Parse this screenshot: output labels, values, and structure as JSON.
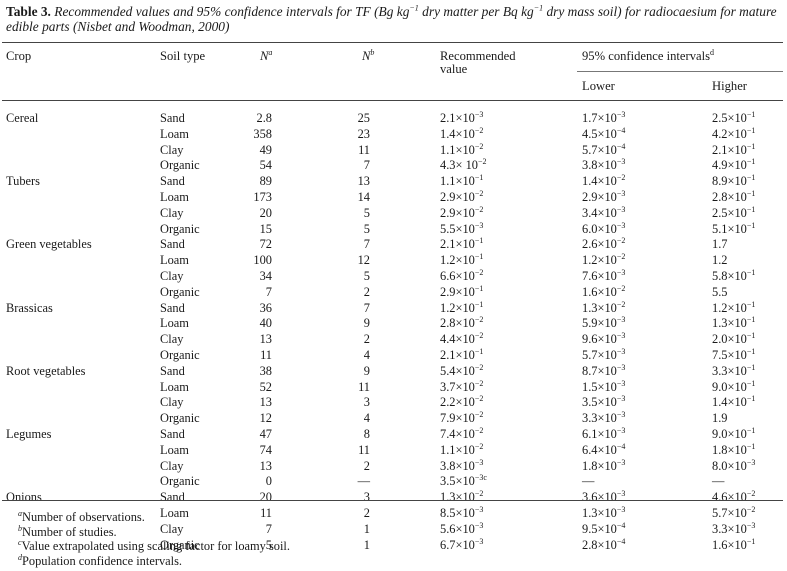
{
  "caption": {
    "label": "Table 3.",
    "text_part1": "Recommended values and 95% confidence intervals for TF (Bg kg",
    "exp1": "−1",
    "text_part2": " dry matter per Bq kg",
    "exp2": "−1",
    "text_part3": " dry mass soil) for radiocaesium for mature edible parts (Nisbet and Woodman, 2000)"
  },
  "headers": {
    "crop": "Crop",
    "soil": "Soil type",
    "n1": "N",
    "n1_sup": "a",
    "n2": "N",
    "n2_sup": "b",
    "rec_line1": "Recommended",
    "rec_line2": "value",
    "ci": "95% confidence intervals",
    "ci_sup": "d",
    "lower": "Lower",
    "higher": "Higher"
  },
  "rows": [
    {
      "crop": "Cereal",
      "soil": "Sand",
      "n1": "2.8",
      "n2": "25",
      "rec": "2.1×10",
      "rec_e": "−3",
      "low": "1.7×10",
      "low_e": "−3",
      "high": "2.5×10",
      "high_e": "−1"
    },
    {
      "crop": "",
      "soil": "Loam",
      "n1": "358",
      "n2": "23",
      "rec": "1.4×10",
      "rec_e": "−2",
      "low": "4.5×10",
      "low_e": "−4",
      "high": "4.2×10",
      "high_e": "−1"
    },
    {
      "crop": "",
      "soil": "Clay",
      "n1": "49",
      "n2": "11",
      "rec": "1.1×10",
      "rec_e": "−2",
      "low": "5.7×10",
      "low_e": "−4",
      "high": "2.1×10",
      "high_e": "−1"
    },
    {
      "crop": "",
      "soil": "Organic",
      "n1": "54",
      "n2": "7",
      "rec": "4.3× 10",
      "rec_e": "−2",
      "low": "3.8×10",
      "low_e": "−3",
      "high": "4.9×10",
      "high_e": "−1"
    },
    {
      "crop": "Tubers",
      "soil": "Sand",
      "n1": "89",
      "n2": "13",
      "rec": "1.1×10",
      "rec_e": "−1",
      "low": "1.4×10",
      "low_e": "−2",
      "high": "8.9×10",
      "high_e": "−1"
    },
    {
      "crop": "",
      "soil": "Loam",
      "n1": "173",
      "n2": "14",
      "rec": "2.9×10",
      "rec_e": "−2",
      "low": "2.9×10",
      "low_e": "−3",
      "high": "2.8×10",
      "high_e": "−1"
    },
    {
      "crop": "",
      "soil": "Clay",
      "n1": "20",
      "n2": "5",
      "rec": "2.9×10",
      "rec_e": "−2",
      "low": "3.4×10",
      "low_e": "−3",
      "high": "2.5×10",
      "high_e": "−1"
    },
    {
      "crop": "",
      "soil": "Organic",
      "n1": "15",
      "n2": "5",
      "rec": "5.5×10",
      "rec_e": "−3",
      "low": "6.0×10",
      "low_e": "−3",
      "high": "5.1×10",
      "high_e": "−1"
    },
    {
      "crop": "Green vegetables",
      "soil": "Sand",
      "n1": "72",
      "n2": "7",
      "rec": "2.1×10",
      "rec_e": "−1",
      "low": "2.6×10",
      "low_e": "−2",
      "high": "1.7",
      "high_e": ""
    },
    {
      "crop": "",
      "soil": "Loam",
      "n1": "100",
      "n2": "12",
      "rec": "1.2×10",
      "rec_e": "−1",
      "low": "1.2×10",
      "low_e": "−2",
      "high": "1.2",
      "high_e": ""
    },
    {
      "crop": "",
      "soil": "Clay",
      "n1": "34",
      "n2": "5",
      "rec": "6.6×10",
      "rec_e": "−2",
      "low": "7.6×10",
      "low_e": "−3",
      "high": "5.8×10",
      "high_e": "−1"
    },
    {
      "crop": "",
      "soil": "Organic",
      "n1": "7",
      "n2": "2",
      "rec": "2.9×10",
      "rec_e": "−1",
      "low": "1.6×10",
      "low_e": "−2",
      "high": "5.5",
      "high_e": ""
    },
    {
      "crop": "Brassicas",
      "soil": "Sand",
      "n1": "36",
      "n2": "7",
      "rec": "1.2×10",
      "rec_e": "−1",
      "low": "1.3×10",
      "low_e": "−2",
      "high": "1.2×10",
      "high_e": "−1"
    },
    {
      "crop": "",
      "soil": "Loam",
      "n1": "40",
      "n2": "9",
      "rec": "2.8×10",
      "rec_e": "−2",
      "low": "5.9×10",
      "low_e": "−3",
      "high": "1.3×10",
      "high_e": "−1"
    },
    {
      "crop": "",
      "soil": "Clay",
      "n1": "13",
      "n2": "2",
      "rec": "4.4×10",
      "rec_e": "−2",
      "low": "9.6×10",
      "low_e": "−3",
      "high": "2.0×10",
      "high_e": "−1"
    },
    {
      "crop": "",
      "soil": "Organic",
      "n1": "11",
      "n2": "4",
      "rec": "2.1×10",
      "rec_e": "−1",
      "low": "5.7×10",
      "low_e": "−3",
      "high": "7.5×10",
      "high_e": "−1"
    },
    {
      "crop": "Root vegetables",
      "soil": "Sand",
      "n1": "38",
      "n2": "9",
      "rec": "5.4×10",
      "rec_e": "−2",
      "low": "8.7×10",
      "low_e": "−3",
      "high": "3.3×10",
      "high_e": "−1"
    },
    {
      "crop": "",
      "soil": "Loam",
      "n1": "52",
      "n2": "11",
      "rec": "3.7×10",
      "rec_e": "−2",
      "low": "1.5×10",
      "low_e": "−3",
      "high": "9.0×10",
      "high_e": "−1"
    },
    {
      "crop": "",
      "soil": "Clay",
      "n1": "13",
      "n2": "3",
      "rec": "2.2×10",
      "rec_e": "−2",
      "low": "3.5×10",
      "low_e": "−3",
      "high": "1.4×10",
      "high_e": "−1"
    },
    {
      "crop": "",
      "soil": "Organic",
      "n1": "12",
      "n2": "4",
      "rec": "7.9×10",
      "rec_e": "−2",
      "low": "3.3×10",
      "low_e": "−3",
      "high": "1.9",
      "high_e": ""
    },
    {
      "crop": "Legumes",
      "soil": "Sand",
      "n1": "47",
      "n2": "8",
      "rec": "7.4×10",
      "rec_e": "−2",
      "low": "6.1×10",
      "low_e": "−3",
      "high": "9.0×10",
      "high_e": "−1"
    },
    {
      "crop": "",
      "soil": "Loam",
      "n1": "74",
      "n2": "11",
      "rec": "1.1×10",
      "rec_e": "−2",
      "low": "6.4×10",
      "low_e": "−4",
      "high": "1.8×10",
      "high_e": "−1"
    },
    {
      "crop": "",
      "soil": "Clay",
      "n1": "13",
      "n2": "2",
      "rec": "3.8×10",
      "rec_e": "−3",
      "low": "1.8×10",
      "low_e": "−3",
      "high": "8.0×10",
      "high_e": "−3"
    },
    {
      "crop": "",
      "soil": "Organic",
      "n1": "0",
      "n2": "—",
      "rec": "3.5×10",
      "rec_e": "−3c",
      "low": "—",
      "low_e": "",
      "high": "—",
      "high_e": ""
    },
    {
      "crop": "Onions",
      "soil": "Sand",
      "n1": "20",
      "n2": "3",
      "rec": "1.3×10",
      "rec_e": "−2",
      "low": "3.6×10",
      "low_e": "−3",
      "high": "4.6×10",
      "high_e": "−2"
    },
    {
      "crop": "",
      "soil": "Loam",
      "n1": "11",
      "n2": "2",
      "rec": "8.5×10",
      "rec_e": "−3",
      "low": "1.3×10",
      "low_e": "−3",
      "high": "5.7×10",
      "high_e": "−2"
    },
    {
      "crop": "",
      "soil": "Clay",
      "n1": "7",
      "n2": "1",
      "rec": "5.6×10",
      "rec_e": "−3",
      "low": "9.5×10",
      "low_e": "−4",
      "high": "3.3×10",
      "high_e": "−3"
    },
    {
      "crop": "",
      "soil": "Organic",
      "n1": "5",
      "n2": "1",
      "rec": "6.7×10",
      "rec_e": "−3",
      "low": "2.8×10",
      "low_e": "−4",
      "high": "1.6×10",
      "high_e": "−1"
    }
  ],
  "footnotes": [
    {
      "mark": "a",
      "text": "Number of observations."
    },
    {
      "mark": "b",
      "text": "Number of studies."
    },
    {
      "mark": "c",
      "text": "Value extrapolated using scaling factor for loamy soil."
    },
    {
      "mark": "d",
      "text": "Population confidence intervals."
    }
  ]
}
